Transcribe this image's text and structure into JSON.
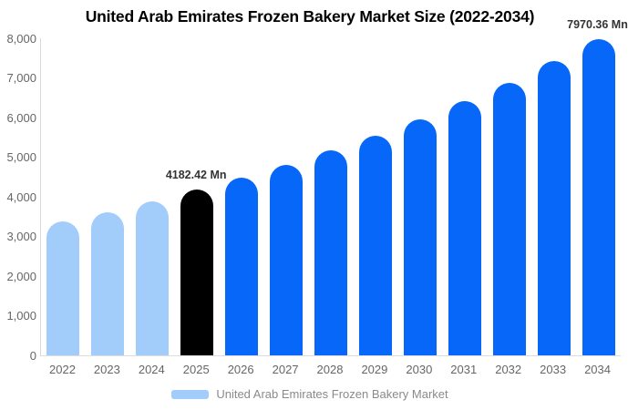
{
  "chart": {
    "title": "United Arab Emirates Frozen Bakery Market Size (2022-2034)"
  },
  "legend": {
    "label": "United Arab Emirates Frozen Bakery Market",
    "swatch_color": "#a2ccfa"
  },
  "colors": {
    "historical_bar": "#a2ccfa",
    "base_year_bar": "#000000",
    "forecast_bar": "#0667f9",
    "axis_line": "#d9d9d9",
    "tick_text": "#666666",
    "annotation_text": "#333333",
    "legend_text": "#8a8a8a"
  },
  "chart_data": {
    "type": "bar",
    "title": "United Arab Emirates Frozen Bakery Market Size (2022-2034)",
    "xlabel": "",
    "ylabel": "",
    "unit": "Mn",
    "ylim": [
      0,
      8000
    ],
    "grid": false,
    "legend_position": "bottom",
    "legend_entries": [
      "United Arab Emirates Frozen Bakery Market"
    ],
    "categories": [
      "2022",
      "2023",
      "2024",
      "2025",
      "2026",
      "2027",
      "2028",
      "2029",
      "2030",
      "2031",
      "2032",
      "2033",
      "2034"
    ],
    "values": [
      3370,
      3620,
      3880,
      4182.42,
      4480,
      4810,
      5180,
      5550,
      5950,
      6410,
      6880,
      7420,
      7970.36
    ],
    "bar_colors": [
      "#a2ccfa",
      "#a2ccfa",
      "#a2ccfa",
      "#000000",
      "#0667f9",
      "#0667f9",
      "#0667f9",
      "#0667f9",
      "#0667f9",
      "#0667f9",
      "#0667f9",
      "#0667f9",
      "#0667f9"
    ],
    "y_tick_labels": [
      "0",
      "1,000",
      "2,000",
      "3,000",
      "4,000",
      "5,000",
      "6,000",
      "7,000",
      "8,000"
    ],
    "annotations": [
      {
        "category": "2025",
        "text": "4182.42 Mn"
      },
      {
        "category": "2034",
        "text": "7970.36 Mn"
      }
    ]
  }
}
